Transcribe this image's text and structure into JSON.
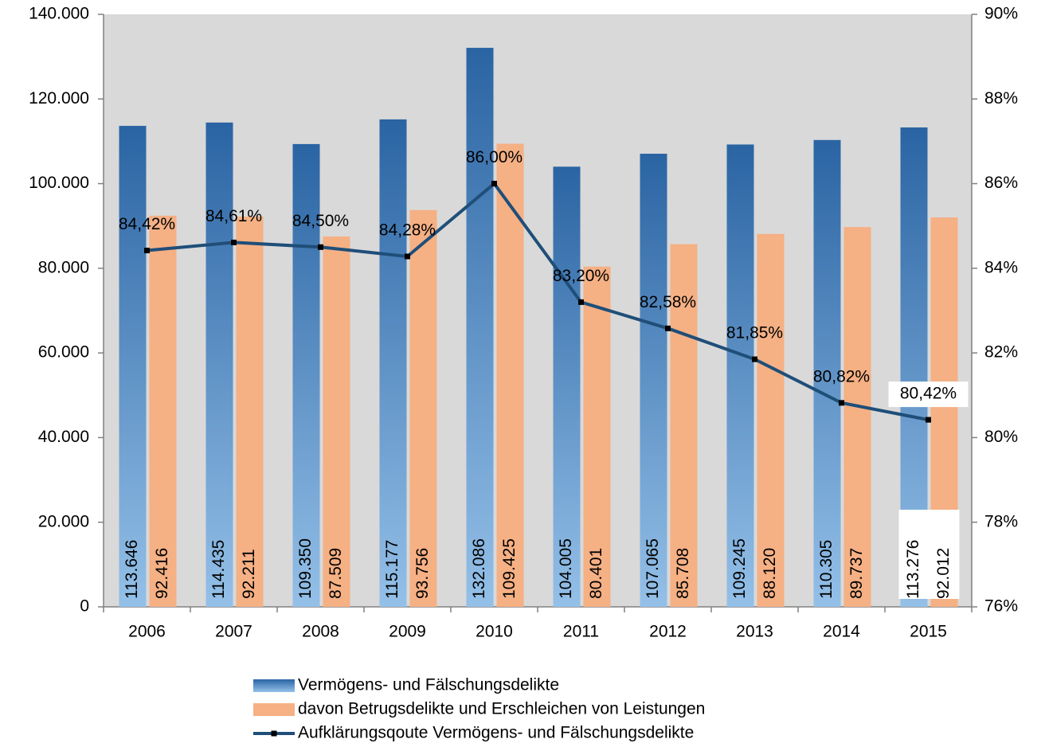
{
  "chart_data": {
    "type": "bar_line",
    "categories": [
      "2006",
      "2007",
      "2008",
      "2009",
      "2010",
      "2011",
      "2012",
      "2013",
      "2014",
      "2015"
    ],
    "series": [
      {
        "name": "Vermögens- und Fälschungsdelikte",
        "color": "#2e6aa8",
        "values": [
          113646,
          114435,
          109350,
          115177,
          132086,
          104005,
          107065,
          109245,
          110305,
          113276
        ],
        "value_labels": [
          "113.646",
          "114.435",
          "109.350",
          "115.177",
          "132.086",
          "104.005",
          "107.065",
          "109.245",
          "110.305",
          "113.276"
        ]
      },
      {
        "name": "davon Betrugsdelikte und Erschleichen von Leistungen",
        "color": "#f5b084",
        "values": [
          92416,
          92211,
          87509,
          93756,
          109425,
          80401,
          85708,
          88120,
          89737,
          92012
        ],
        "value_labels": [
          "92.416",
          "92.211",
          "87.509",
          "93.756",
          "109.425",
          "80.401",
          "85.708",
          "88.120",
          "89.737",
          "92.012"
        ]
      },
      {
        "name": "Aufklärungsqoute Vermögens- und Fälschungsdelikte",
        "color": "#1f4e79",
        "axis": "y2",
        "values": [
          84.42,
          84.61,
          84.5,
          84.28,
          86.0,
          83.2,
          82.58,
          81.85,
          80.82,
          80.42
        ],
        "value_labels": [
          "84,42%",
          "84,61%",
          "84,50%",
          "84,28%",
          "86,00%",
          "83,20%",
          "82,58%",
          "81,85%",
          "80,82%",
          "80,42%"
        ]
      }
    ],
    "ylim": [
      0,
      140000
    ],
    "yticks": [
      0,
      {
        "value": 20000,
        "label": "20.000"
      },
      {
        "value": 40000,
        "label": "40.000"
      },
      {
        "value": 60000,
        "label": "60.000"
      },
      {
        "value": 80000,
        "label": "80.000"
      },
      {
        "value": 100000,
        "label": "100.000"
      },
      {
        "value": 120000,
        "label": "120.000"
      },
      {
        "value": 140000,
        "label": "140.000"
      }
    ],
    "y2lim": [
      76,
      90
    ],
    "y2ticks": [
      {
        "value": 76,
        "label": "76%"
      },
      {
        "value": 78,
        "label": "78%"
      },
      {
        "value": 80,
        "label": "80%"
      },
      {
        "value": 82,
        "label": "82%"
      },
      {
        "value": 84,
        "label": "84%"
      },
      {
        "value": 86,
        "label": "86%"
      },
      {
        "value": 88,
        "label": "88%"
      },
      {
        "value": 90,
        "label": "90%"
      }
    ],
    "legend": "bottom"
  }
}
